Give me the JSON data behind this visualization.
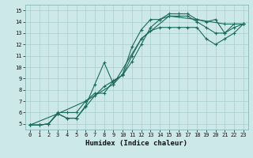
{
  "xlabel": "Humidex (Indice chaleur)",
  "xlim": [
    -0.5,
    23.5
  ],
  "ylim": [
    4.5,
    15.5
  ],
  "xticks": [
    0,
    1,
    2,
    3,
    4,
    5,
    6,
    7,
    8,
    9,
    10,
    11,
    12,
    13,
    14,
    15,
    16,
    17,
    18,
    19,
    20,
    21,
    22,
    23
  ],
  "yticks": [
    5,
    6,
    7,
    8,
    9,
    10,
    11,
    12,
    13,
    14,
    15
  ],
  "bg_color": "#cde8e8",
  "grid_color": "#aacece",
  "line_color": "#1a6b5a",
  "lines": [
    {
      "x": [
        0,
        1,
        2,
        3,
        4,
        5,
        6,
        7,
        8,
        9,
        10,
        11,
        12,
        13,
        14,
        15,
        16,
        17,
        18,
        19,
        20,
        21,
        22,
        23
      ],
      "y": [
        4.9,
        4.9,
        5.0,
        5.9,
        5.5,
        5.5,
        6.6,
        8.5,
        10.4,
        8.5,
        9.4,
        11.8,
        13.3,
        14.2,
        14.2,
        14.7,
        14.7,
        14.7,
        14.2,
        14.0,
        14.2,
        13.0,
        13.8,
        13.8
      ]
    },
    {
      "x": [
        0,
        1,
        2,
        3,
        4,
        5,
        6,
        7,
        8,
        9,
        10,
        11,
        12,
        13,
        14,
        15,
        16,
        17,
        18,
        19,
        20,
        21,
        22,
        23
      ],
      "y": [
        4.9,
        4.9,
        5.0,
        5.9,
        5.5,
        5.5,
        6.5,
        7.5,
        8.3,
        8.8,
        9.3,
        10.5,
        12.0,
        13.5,
        14.2,
        14.5,
        14.5,
        14.5,
        14.0,
        13.5,
        13.0,
        13.0,
        13.5,
        13.8
      ]
    },
    {
      "x": [
        0,
        1,
        2,
        3,
        4,
        5,
        6,
        7,
        8,
        9,
        10,
        11,
        12,
        13,
        14,
        15,
        16,
        17,
        18,
        19,
        20,
        21,
        22,
        23
      ],
      "y": [
        4.9,
        4.9,
        5.0,
        6.0,
        6.0,
        6.0,
        7.0,
        7.7,
        7.7,
        8.8,
        9.3,
        11.0,
        12.5,
        13.2,
        13.5,
        13.5,
        13.5,
        13.5,
        13.5,
        12.5,
        12.0,
        12.5,
        13.0,
        13.8
      ]
    },
    {
      "x": [
        0,
        3,
        6,
        9,
        12,
        15,
        18,
        21,
        23
      ],
      "y": [
        4.9,
        5.9,
        7.0,
        8.5,
        12.5,
        14.5,
        14.2,
        13.8,
        13.8
      ]
    }
  ]
}
